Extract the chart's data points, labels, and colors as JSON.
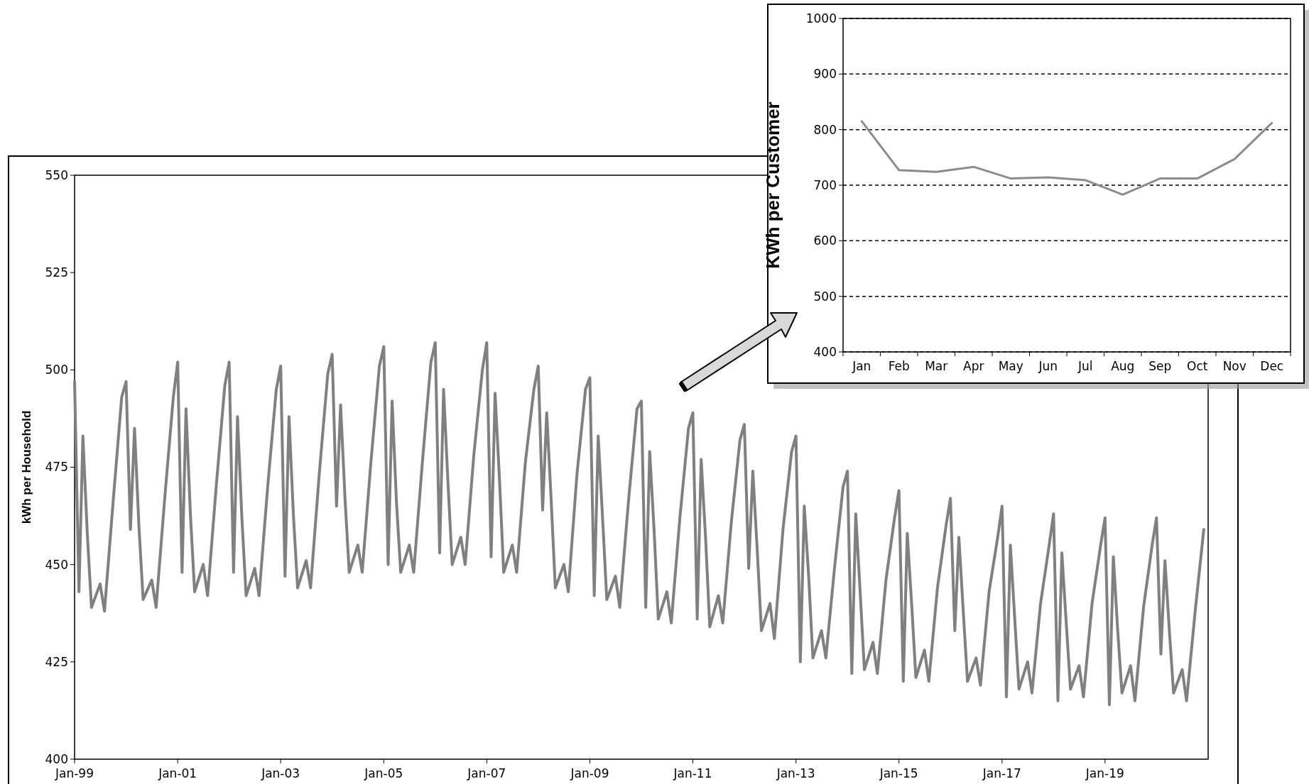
{
  "chart_data": [
    {
      "type": "line",
      "ylabel": "kWh per Household",
      "xlim": [
        "1999-01",
        "2021-01"
      ],
      "xticks": [
        {
          "value": "1999-01",
          "label": "Jan-99"
        },
        {
          "value": "2001-01",
          "label": "Jan-01"
        },
        {
          "value": "2003-01",
          "label": "Jan-03"
        },
        {
          "value": "2005-01",
          "label": "Jan-05"
        },
        {
          "value": "2007-01",
          "label": "Jan-07"
        },
        {
          "value": "2009-01",
          "label": "Jan-09"
        },
        {
          "value": "2011-01",
          "label": "Jan-11"
        },
        {
          "value": "2013-01",
          "label": "Jan-13"
        },
        {
          "value": "2015-01",
          "label": "Jan-15"
        },
        {
          "value": "2017-01",
          "label": "Jan-17"
        },
        {
          "value": "2019-01",
          "label": "Jan-19"
        }
      ],
      "ylim": [
        400,
        550
      ],
      "yticks": [
        400,
        425,
        450,
        475,
        500,
        525,
        550
      ],
      "grid": false,
      "x": [
        "1999-01",
        "1999-02",
        "1999-03",
        "1999-04",
        "1999-05",
        "1999-07",
        "1999-08",
        "1999-10",
        "1999-12",
        "2000-01",
        "2000-02",
        "2000-03",
        "2000-04",
        "2000-05",
        "2000-07",
        "2000-08",
        "2000-10",
        "2000-12",
        "2001-01",
        "2001-02",
        "2001-03",
        "2001-04",
        "2001-05",
        "2001-07",
        "2001-08",
        "2001-10",
        "2001-12",
        "2002-01",
        "2002-02",
        "2002-03",
        "2002-04",
        "2002-05",
        "2002-07",
        "2002-08",
        "2002-10",
        "2002-12",
        "2003-01",
        "2003-02",
        "2003-03",
        "2003-04",
        "2003-05",
        "2003-07",
        "2003-08",
        "2003-10",
        "2003-12",
        "2004-01",
        "2004-02",
        "2004-03",
        "2004-04",
        "2004-05",
        "2004-07",
        "2004-08",
        "2004-10",
        "2004-12",
        "2005-01",
        "2005-02",
        "2005-03",
        "2005-04",
        "2005-05",
        "2005-07",
        "2005-08",
        "2005-10",
        "2005-12",
        "2006-01",
        "2006-02",
        "2006-03",
        "2006-04",
        "2006-05",
        "2006-07",
        "2006-08",
        "2006-10",
        "2006-12",
        "2007-01",
        "2007-02",
        "2007-03",
        "2007-04",
        "2007-05",
        "2007-07",
        "2007-08",
        "2007-10",
        "2007-12",
        "2008-01",
        "2008-02",
        "2008-03",
        "2008-04",
        "2008-05",
        "2008-07",
        "2008-08",
        "2008-10",
        "2008-12",
        "2009-01",
        "2009-02",
        "2009-03",
        "2009-04",
        "2009-05",
        "2009-07",
        "2009-08",
        "2009-10",
        "2009-12",
        "2010-01",
        "2010-02",
        "2010-03",
        "2010-04",
        "2010-05",
        "2010-07",
        "2010-08",
        "2010-10",
        "2010-12",
        "2011-01",
        "2011-02",
        "2011-03",
        "2011-04",
        "2011-05",
        "2011-07",
        "2011-08",
        "2011-10",
        "2011-12",
        "2012-01",
        "2012-02",
        "2012-03",
        "2012-04",
        "2012-05",
        "2012-07",
        "2012-08",
        "2012-10",
        "2012-12",
        "2013-01",
        "2013-02",
        "2013-03",
        "2013-04",
        "2013-05",
        "2013-07",
        "2013-08",
        "2013-10",
        "2013-12",
        "2014-01",
        "2014-02",
        "2014-03",
        "2014-04",
        "2014-05",
        "2014-07",
        "2014-08",
        "2014-10",
        "2014-12",
        "2015-01",
        "2015-02",
        "2015-03",
        "2015-04",
        "2015-05",
        "2015-07",
        "2015-08",
        "2015-10",
        "2015-12",
        "2016-01",
        "2016-02",
        "2016-03",
        "2016-04",
        "2016-05",
        "2016-07",
        "2016-08",
        "2016-10",
        "2016-12",
        "2017-01",
        "2017-02",
        "2017-03",
        "2017-04",
        "2017-05",
        "2017-07",
        "2017-08",
        "2017-10",
        "2017-12",
        "2018-01",
        "2018-02",
        "2018-03",
        "2018-04",
        "2018-05",
        "2018-07",
        "2018-08",
        "2018-10",
        "2018-12",
        "2019-01",
        "2019-02",
        "2019-03",
        "2019-04",
        "2019-05",
        "2019-07",
        "2019-08",
        "2019-10",
        "2019-12",
        "2020-01",
        "2020-02",
        "2020-03",
        "2020-04",
        "2020-05",
        "2020-07",
        "2020-08",
        "2020-10",
        "2020-12"
      ],
      "series": [
        {
          "color": "#808080",
          "values": [
            497,
            443,
            483,
            458,
            439,
            445,
            438,
            466,
            493,
            497,
            459,
            485,
            460,
            441,
            446,
            439,
            467,
            493,
            502,
            448,
            490,
            463,
            443,
            450,
            442,
            470,
            496,
            502,
            448,
            488,
            462,
            442,
            449,
            442,
            470,
            495,
            501,
            447,
            488,
            463,
            444,
            451,
            444,
            473,
            499,
            504,
            465,
            491,
            467,
            448,
            455,
            448,
            476,
            501,
            506,
            450,
            492,
            466,
            448,
            455,
            448,
            476,
            502,
            507,
            453,
            495,
            471,
            450,
            457,
            450,
            478,
            500,
            507,
            452,
            494,
            472,
            448,
            455,
            448,
            476,
            495,
            501,
            464,
            489,
            467,
            444,
            450,
            443,
            473,
            495,
            498,
            442,
            483,
            462,
            441,
            447,
            439,
            466,
            490,
            492,
            439,
            479,
            459,
            436,
            443,
            435,
            462,
            485,
            489,
            436,
            477,
            457,
            434,
            442,
            435,
            461,
            482,
            486,
            449,
            474,
            454,
            433,
            440,
            431,
            459,
            479,
            483,
            425,
            465,
            447,
            426,
            433,
            426,
            449,
            470,
            474,
            422,
            463,
            443,
            423,
            430,
            422,
            446,
            462,
            469,
            420,
            458,
            440,
            421,
            428,
            420,
            444,
            460,
            467,
            433,
            457,
            438,
            420,
            426,
            419,
            443,
            457,
            465,
            416,
            455,
            436,
            418,
            425,
            417,
            440,
            455,
            463,
            415,
            453,
            435,
            418,
            424,
            416,
            440,
            455,
            462,
            414,
            452,
            433,
            417,
            424,
            415,
            439,
            455,
            462,
            427,
            451,
            433,
            417,
            423,
            415,
            438,
            459
          ]
        }
      ]
    },
    {
      "type": "line",
      "ylabel": "KWh per Customer",
      "categories": [
        "Jan",
        "Feb",
        "Mar",
        "Apr",
        "May",
        "Jun",
        "Jul",
        "Aug",
        "Sep",
        "Oct",
        "Nov",
        "Dec"
      ],
      "ylim": [
        400,
        1000
      ],
      "yticks": [
        400,
        500,
        600,
        700,
        800,
        900,
        1000
      ],
      "grid": "y",
      "series": [
        {
          "color": "#8c8c8c",
          "values": [
            815,
            727,
            724,
            733,
            712,
            714,
            709,
            683,
            712,
            712,
            747,
            812
          ]
        }
      ]
    }
  ]
}
